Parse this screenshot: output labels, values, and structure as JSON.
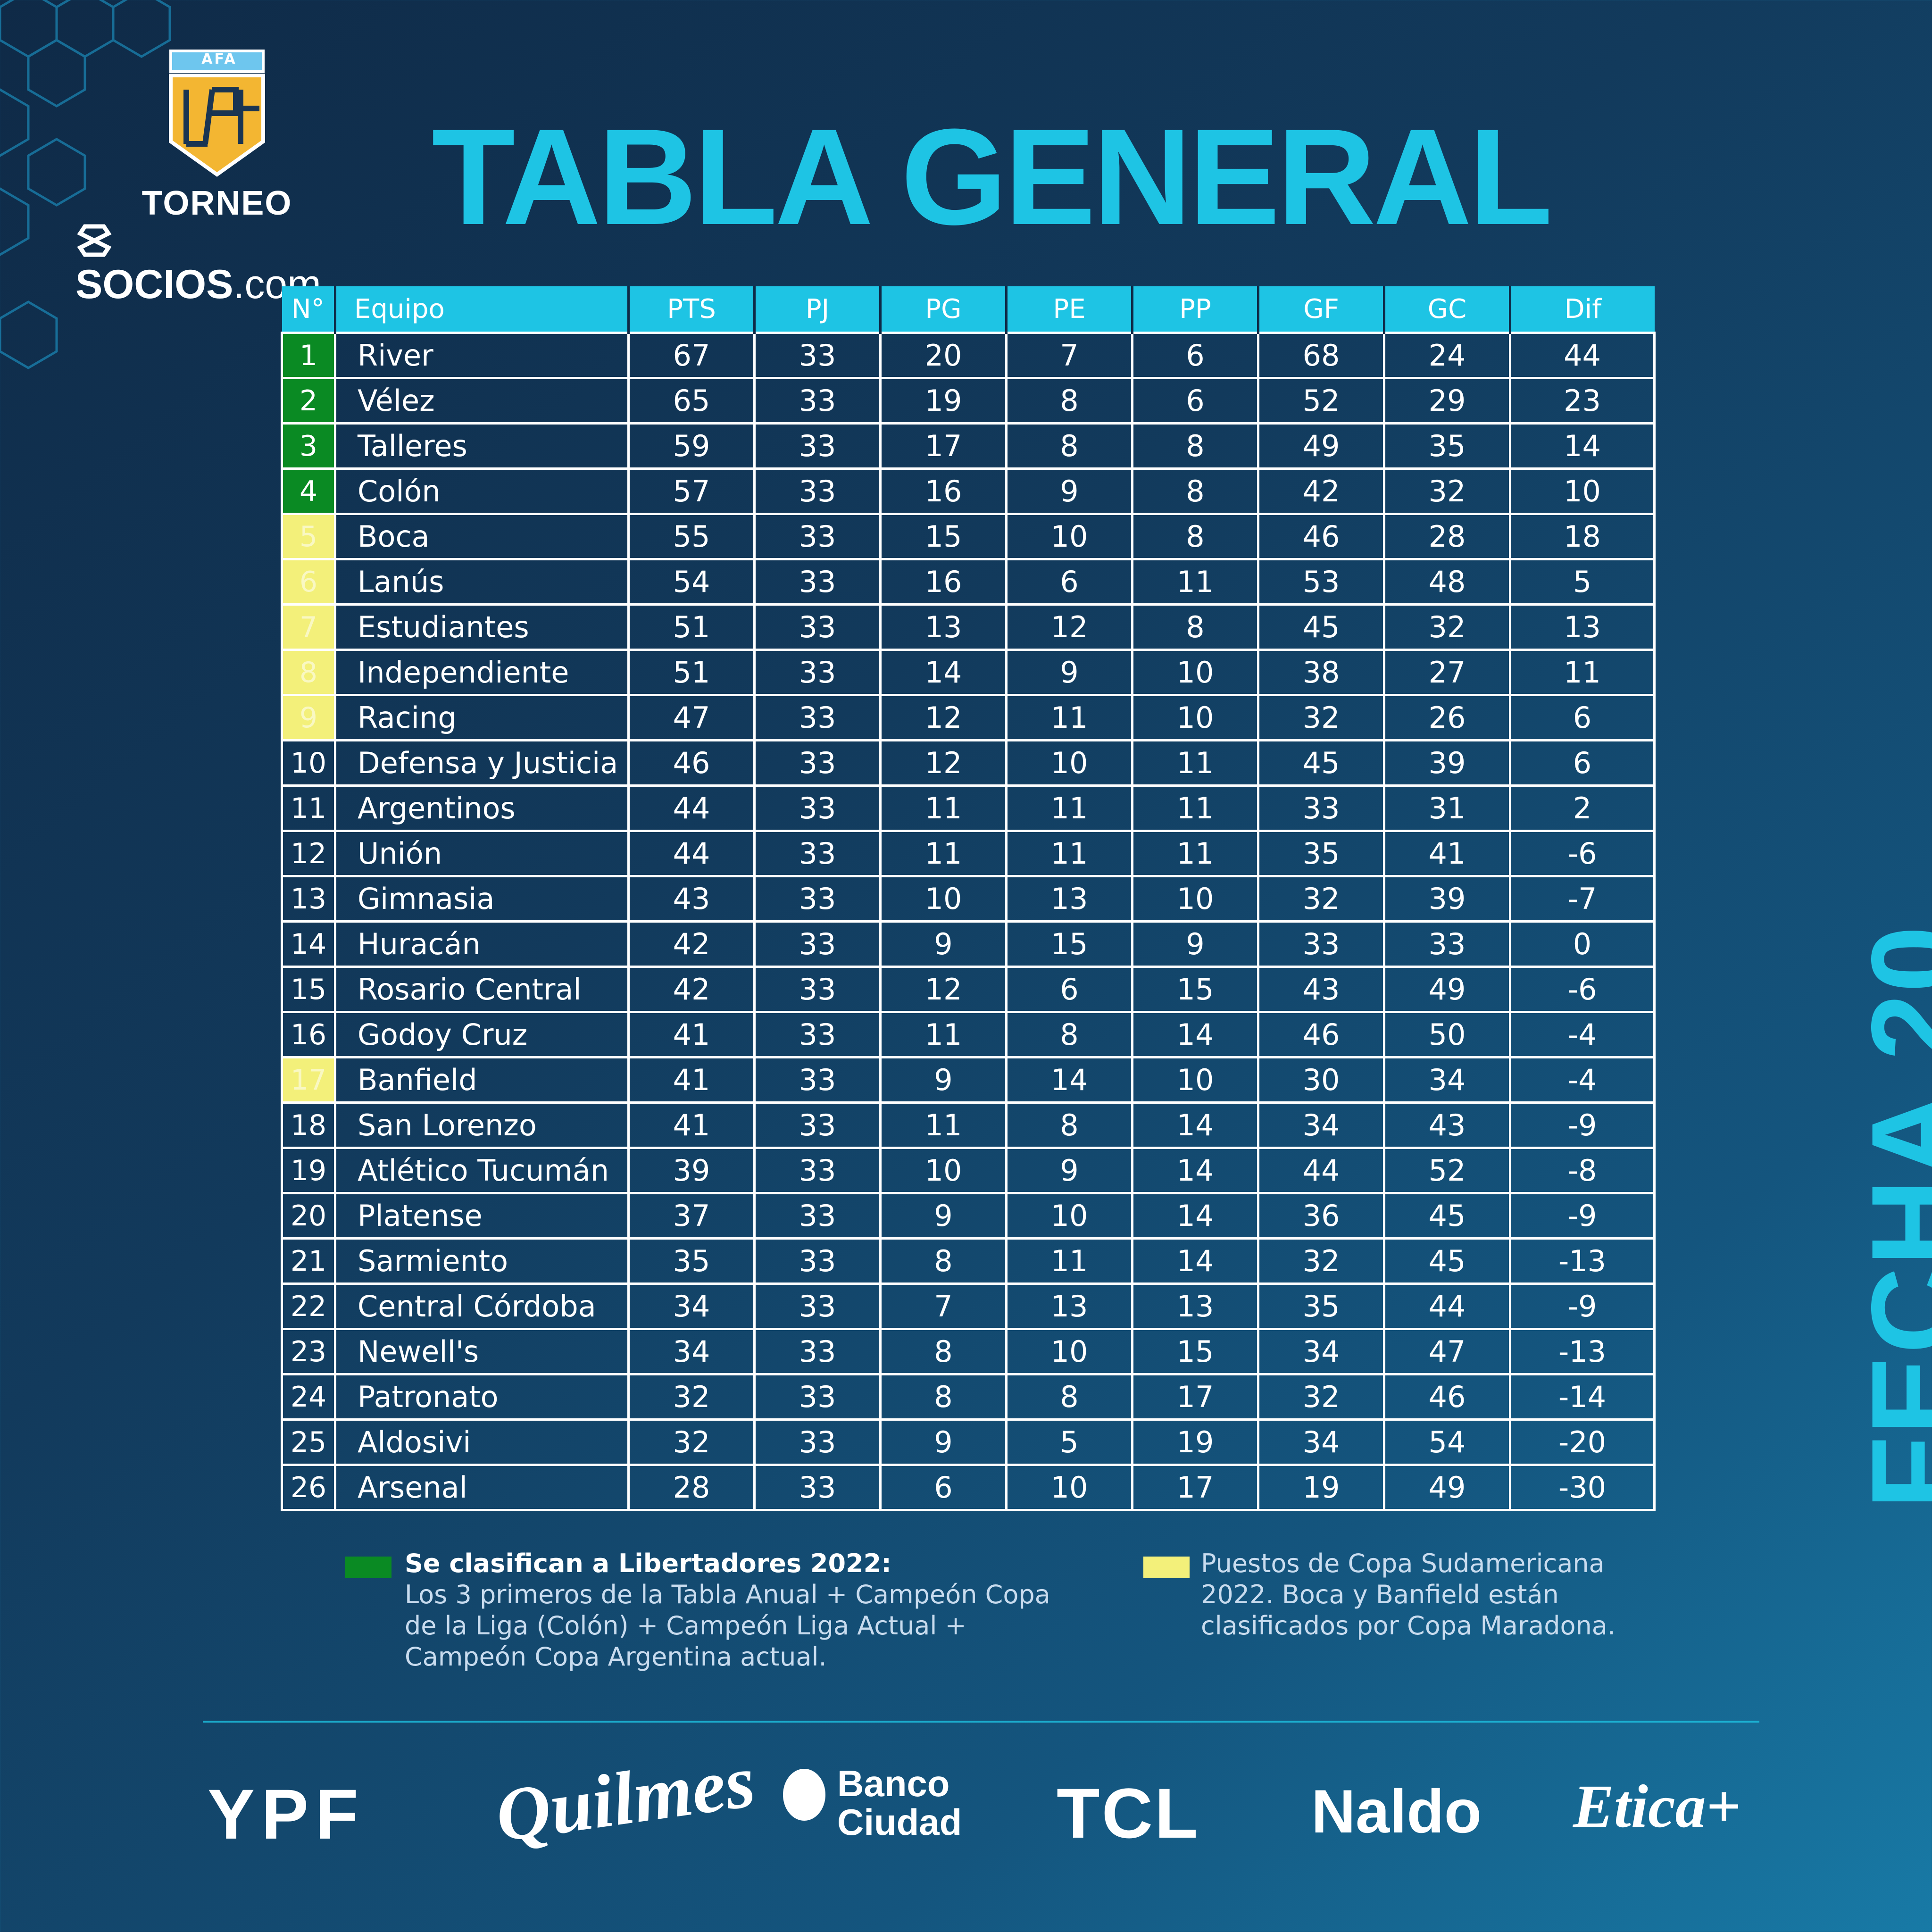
{
  "header": {
    "afa_label": "AFA",
    "torneo_label": "TORNEO",
    "socios_bold": "SOCIOS",
    "socios_light": ".com",
    "title": "TABLA GENERAL",
    "side_label": "FECHA 20"
  },
  "colors": {
    "accent": "#1ec4e4",
    "libertadores": "#0a8a23",
    "sudamericana": "#f3f07a"
  },
  "table": {
    "columns": [
      "N°",
      "Equipo",
      "PTS",
      "PJ",
      "PG",
      "PE",
      "PP",
      "GF",
      "GC",
      "Dif"
    ],
    "rows": [
      {
        "pos": "1",
        "team": "River",
        "pts": "67",
        "pj": "33",
        "pg": "20",
        "pe": "7",
        "pp": "6",
        "gf": "68",
        "gc": "24",
        "dif": "44",
        "zone": "green"
      },
      {
        "pos": "2",
        "team": "Vélez",
        "pts": "65",
        "pj": "33",
        "pg": "19",
        "pe": "8",
        "pp": "6",
        "gf": "52",
        "gc": "29",
        "dif": "23",
        "zone": "green"
      },
      {
        "pos": "3",
        "team": "Talleres",
        "pts": "59",
        "pj": "33",
        "pg": "17",
        "pe": "8",
        "pp": "8",
        "gf": "49",
        "gc": "35",
        "dif": "14",
        "zone": "green"
      },
      {
        "pos": "4",
        "team": "Colón",
        "pts": "57",
        "pj": "33",
        "pg": "16",
        "pe": "9",
        "pp": "8",
        "gf": "42",
        "gc": "32",
        "dif": "10",
        "zone": "green"
      },
      {
        "pos": "5",
        "team": "Boca",
        "pts": "55",
        "pj": "33",
        "pg": "15",
        "pe": "10",
        "pp": "8",
        "gf": "46",
        "gc": "28",
        "dif": "18",
        "zone": "yellow"
      },
      {
        "pos": "6",
        "team": "Lanús",
        "pts": "54",
        "pj": "33",
        "pg": "16",
        "pe": "6",
        "pp": "11",
        "gf": "53",
        "gc": "48",
        "dif": "5",
        "zone": "yellow"
      },
      {
        "pos": "7",
        "team": "Estudiantes",
        "pts": "51",
        "pj": "33",
        "pg": "13",
        "pe": "12",
        "pp": "8",
        "gf": "45",
        "gc": "32",
        "dif": "13",
        "zone": "yellow"
      },
      {
        "pos": "8",
        "team": "Independiente",
        "pts": "51",
        "pj": "33",
        "pg": "14",
        "pe": "9",
        "pp": "10",
        "gf": "38",
        "gc": "27",
        "dif": "11",
        "zone": "yellow"
      },
      {
        "pos": "9",
        "team": "Racing",
        "pts": "47",
        "pj": "33",
        "pg": "12",
        "pe": "11",
        "pp": "10",
        "gf": "32",
        "gc": "26",
        "dif": "6",
        "zone": "yellow"
      },
      {
        "pos": "10",
        "team": "Defensa y Justicia",
        "pts": "46",
        "pj": "33",
        "pg": "12",
        "pe": "10",
        "pp": "11",
        "gf": "45",
        "gc": "39",
        "dif": "6",
        "zone": ""
      },
      {
        "pos": "11",
        "team": "Argentinos",
        "pts": "44",
        "pj": "33",
        "pg": "11",
        "pe": "11",
        "pp": "11",
        "gf": "33",
        "gc": "31",
        "dif": "2",
        "zone": ""
      },
      {
        "pos": "12",
        "team": "Unión",
        "pts": "44",
        "pj": "33",
        "pg": "11",
        "pe": "11",
        "pp": "11",
        "gf": "35",
        "gc": "41",
        "dif": "-6",
        "zone": ""
      },
      {
        "pos": "13",
        "team": "Gimnasia",
        "pts": "43",
        "pj": "33",
        "pg": "10",
        "pe": "13",
        "pp": "10",
        "gf": "32",
        "gc": "39",
        "dif": "-7",
        "zone": ""
      },
      {
        "pos": "14",
        "team": "Huracán",
        "pts": "42",
        "pj": "33",
        "pg": "9",
        "pe": "15",
        "pp": "9",
        "gf": "33",
        "gc": "33",
        "dif": "0",
        "zone": ""
      },
      {
        "pos": "15",
        "team": "Rosario Central",
        "pts": "42",
        "pj": "33",
        "pg": "12",
        "pe": "6",
        "pp": "15",
        "gf": "43",
        "gc": "49",
        "dif": "-6",
        "zone": ""
      },
      {
        "pos": "16",
        "team": "Godoy Cruz",
        "pts": "41",
        "pj": "33",
        "pg": "11",
        "pe": "8",
        "pp": "14",
        "gf": "46",
        "gc": "50",
        "dif": "-4",
        "zone": ""
      },
      {
        "pos": "17",
        "team": "Banfield",
        "pts": "41",
        "pj": "33",
        "pg": "9",
        "pe": "14",
        "pp": "10",
        "gf": "30",
        "gc": "34",
        "dif": "-4",
        "zone": "yellow"
      },
      {
        "pos": "18",
        "team": "San Lorenzo",
        "pts": "41",
        "pj": "33",
        "pg": "11",
        "pe": "8",
        "pp": "14",
        "gf": "34",
        "gc": "43",
        "dif": "-9",
        "zone": ""
      },
      {
        "pos": "19",
        "team": "Atlético Tucumán",
        "pts": "39",
        "pj": "33",
        "pg": "10",
        "pe": "9",
        "pp": "14",
        "gf": "44",
        "gc": "52",
        "dif": "-8",
        "zone": ""
      },
      {
        "pos": "20",
        "team": "Platense",
        "pts": "37",
        "pj": "33",
        "pg": "9",
        "pe": "10",
        "pp": "14",
        "gf": "36",
        "gc": "45",
        "dif": "-9",
        "zone": ""
      },
      {
        "pos": "21",
        "team": "Sarmiento",
        "pts": "35",
        "pj": "33",
        "pg": "8",
        "pe": "11",
        "pp": "14",
        "gf": "32",
        "gc": "45",
        "dif": "-13",
        "zone": ""
      },
      {
        "pos": "22",
        "team": "Central Córdoba",
        "pts": "34",
        "pj": "33",
        "pg": "7",
        "pe": "13",
        "pp": "13",
        "gf": "35",
        "gc": "44",
        "dif": "-9",
        "zone": ""
      },
      {
        "pos": "23",
        "team": "Newell's",
        "pts": "34",
        "pj": "33",
        "pg": "8",
        "pe": "10",
        "pp": "15",
        "gf": "34",
        "gc": "47",
        "dif": "-13",
        "zone": ""
      },
      {
        "pos": "24",
        "team": "Patronato",
        "pts": "32",
        "pj": "33",
        "pg": "8",
        "pe": "8",
        "pp": "17",
        "gf": "32",
        "gc": "46",
        "dif": "-14",
        "zone": ""
      },
      {
        "pos": "25",
        "team": "Aldosivi",
        "pts": "32",
        "pj": "33",
        "pg": "9",
        "pe": "5",
        "pp": "19",
        "gf": "34",
        "gc": "54",
        "dif": "-20",
        "zone": ""
      },
      {
        "pos": "26",
        "team": "Arsenal",
        "pts": "28",
        "pj": "33",
        "pg": "6",
        "pe": "10",
        "pp": "17",
        "gf": "19",
        "gc": "49",
        "dif": "-30",
        "zone": ""
      }
    ]
  },
  "legend": {
    "libertadores_title": "Se clasifican a Libertadores 2022:",
    "libertadores_text": "Los 3 primeros de la Tabla Anual  + Campeón Copa de la Liga (Colón) + Campeón Liga Actual + Campeón Copa Argentina actual.",
    "sudamericana_text": "Puestos de Copa Sudamericana 2022. Boca y Banfield están clasificados por Copa Maradona."
  },
  "sponsors": {
    "ypf": "YPF",
    "quilmes": "Quilmes",
    "banco_line1": "Banco",
    "banco_line2": "Ciudad",
    "tcl": "TCL",
    "naldo": "Naldo",
    "etica": "Etica+"
  }
}
